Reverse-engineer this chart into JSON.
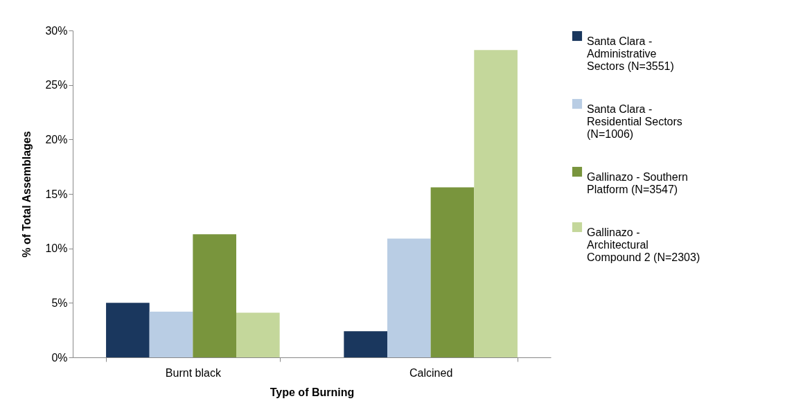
{
  "chart_data": {
    "type": "bar",
    "xlabel": "Type of Burning",
    "ylabel": "% of Total Assemblages",
    "categories": [
      "Burnt black",
      "Calcined"
    ],
    "series": [
      {
        "name": "Santa Clara - Administrative Sectors (N=3551)",
        "color": "#1a375e",
        "values": [
          5.0,
          2.4
        ]
      },
      {
        "name": "Santa Clara - Residential Sectors (N=1006)",
        "color": "#b9cde4",
        "values": [
          4.2,
          10.9
        ]
      },
      {
        "name": "Gallinazo - Southern Platform (N=3547)",
        "color": "#79953d",
        "values": [
          11.3,
          15.6
        ]
      },
      {
        "name": "Gallinazo - Architectural Compound 2 (N=2303)",
        "color": "#c4d79b",
        "values": [
          4.1,
          28.2
        ]
      }
    ],
    "ylim": [
      0,
      30
    ],
    "yticks": [
      {
        "value": 0,
        "label": "0%"
      },
      {
        "value": 5,
        "label": "5%"
      },
      {
        "value": 10,
        "label": "10%"
      },
      {
        "value": 15,
        "label": "15%"
      },
      {
        "value": 20,
        "label": "20%"
      },
      {
        "value": 25,
        "label": "25%"
      },
      {
        "value": 30,
        "label": "30%"
      }
    ],
    "grid": false,
    "legend": "right"
  }
}
